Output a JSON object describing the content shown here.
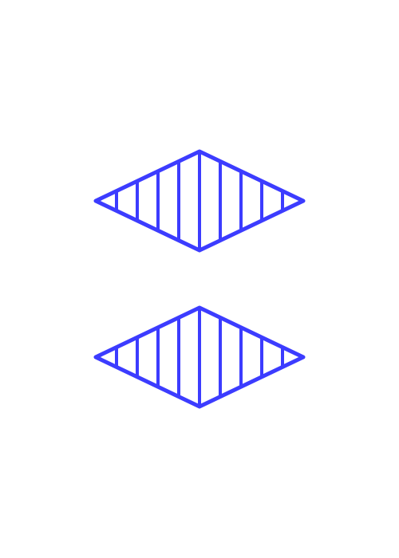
{
  "card": {
    "count": 2,
    "shape": "diamond",
    "fill": "striped",
    "color": "#3c3cff",
    "background": "#ffffff"
  }
}
